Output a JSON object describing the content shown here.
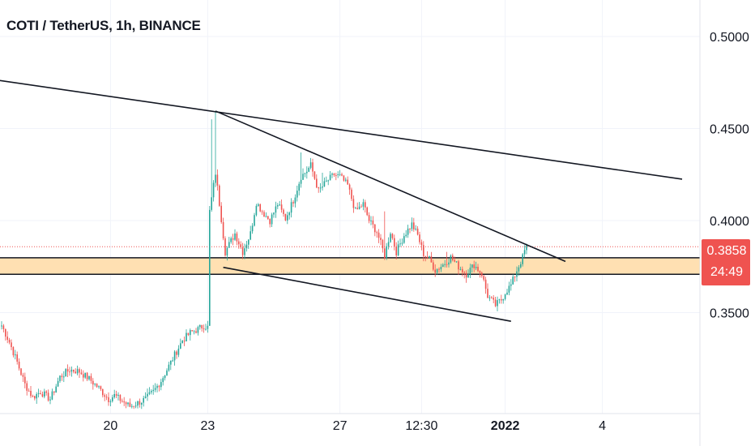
{
  "chart_data": {
    "type": "candlestick",
    "title": "COTI / TetherUS, 1h, BINANCE",
    "y_ticks": [
      "0.5000",
      "0.4500",
      "0.4000",
      "0.3500"
    ],
    "x_ticks": [
      "20",
      "23",
      "27",
      "12:30",
      "2022",
      "4"
    ],
    "last_price": "0.3858",
    "countdown": "24:49",
    "ylim": [
      0.3,
      0.52
    ],
    "grid": true,
    "up_color": "#26a69a",
    "down_color": "#ef5350",
    "zone": {
      "low": 0.3708,
      "high": 0.3798,
      "color": "#ffe0b2"
    },
    "trendlines": [
      {
        "points": [
          [
            -5,
            0.4767
          ],
          [
            350,
            0.4225
          ]
        ]
      },
      {
        "points": [
          [
            110,
            0.4595
          ],
          [
            290,
            0.3778
          ]
        ]
      },
      {
        "points": [
          [
            114,
            0.3746
          ],
          [
            262,
            0.3453
          ]
        ]
      }
    ],
    "waypoints": [
      [
        0,
        0.343
      ],
      [
        4,
        0.334
      ],
      [
        8,
        0.323
      ],
      [
        12,
        0.311
      ],
      [
        16,
        0.304
      ],
      [
        20,
        0.307
      ],
      [
        25,
        0.303
      ],
      [
        30,
        0.315
      ],
      [
        35,
        0.319
      ],
      [
        40,
        0.318
      ],
      [
        45,
        0.314
      ],
      [
        50,
        0.309
      ],
      [
        55,
        0.303
      ],
      [
        58,
        0.305
      ],
      [
        62,
        0.302
      ],
      [
        66,
        0.299
      ],
      [
        70,
        0.301
      ],
      [
        74,
        0.303
      ],
      [
        78,
        0.307
      ],
      [
        82,
        0.313
      ],
      [
        86,
        0.321
      ],
      [
        90,
        0.329
      ],
      [
        93,
        0.335
      ],
      [
        97,
        0.339
      ],
      [
        101,
        0.341
      ],
      [
        104,
        0.343
      ],
      [
        106,
        0.342
      ],
      [
        107,
        0.405
      ],
      [
        108,
        0.412
      ],
      [
        110,
        0.426
      ],
      [
        113,
        0.401
      ],
      [
        115,
        0.383
      ],
      [
        118,
        0.389
      ],
      [
        120,
        0.393
      ],
      [
        124,
        0.383
      ],
      [
        128,
        0.393
      ],
      [
        131,
        0.41
      ],
      [
        134,
        0.405
      ],
      [
        138,
        0.4
      ],
      [
        142,
        0.409
      ],
      [
        146,
        0.401
      ],
      [
        150,
        0.411
      ],
      [
        154,
        0.424
      ],
      [
        157,
        0.427
      ],
      [
        159,
        0.43
      ],
      [
        163,
        0.416
      ],
      [
        167,
        0.421
      ],
      [
        171,
        0.425
      ],
      [
        174,
        0.424
      ],
      [
        178,
        0.419
      ],
      [
        182,
        0.405
      ],
      [
        186,
        0.409
      ],
      [
        189,
        0.4
      ],
      [
        193,
        0.394
      ],
      [
        197,
        0.381
      ],
      [
        200,
        0.394
      ],
      [
        203,
        0.383
      ],
      [
        207,
        0.392
      ],
      [
        211,
        0.398
      ],
      [
        214,
        0.392
      ],
      [
        217,
        0.382
      ],
      [
        220,
        0.379
      ],
      [
        223,
        0.373
      ],
      [
        227,
        0.376
      ],
      [
        231,
        0.38
      ],
      [
        235,
        0.375
      ],
      [
        239,
        0.371
      ],
      [
        243,
        0.376
      ],
      [
        247,
        0.371
      ],
      [
        250,
        0.359
      ],
      [
        254,
        0.354
      ],
      [
        257,
        0.357
      ],
      [
        259,
        0.361
      ],
      [
        262,
        0.365
      ],
      [
        265,
        0.373
      ],
      [
        268,
        0.38
      ],
      [
        270,
        0.387
      ]
    ],
    "spikes": [
      [
        108,
        0.455
      ],
      [
        110,
        0.459
      ],
      [
        154,
        0.437
      ],
      [
        159,
        0.434
      ],
      [
        165,
        0.426
      ],
      [
        173,
        0.422
      ],
      [
        197,
        0.405
      ],
      [
        215,
        0.38
      ],
      [
        229,
        0.383
      ]
    ]
  }
}
